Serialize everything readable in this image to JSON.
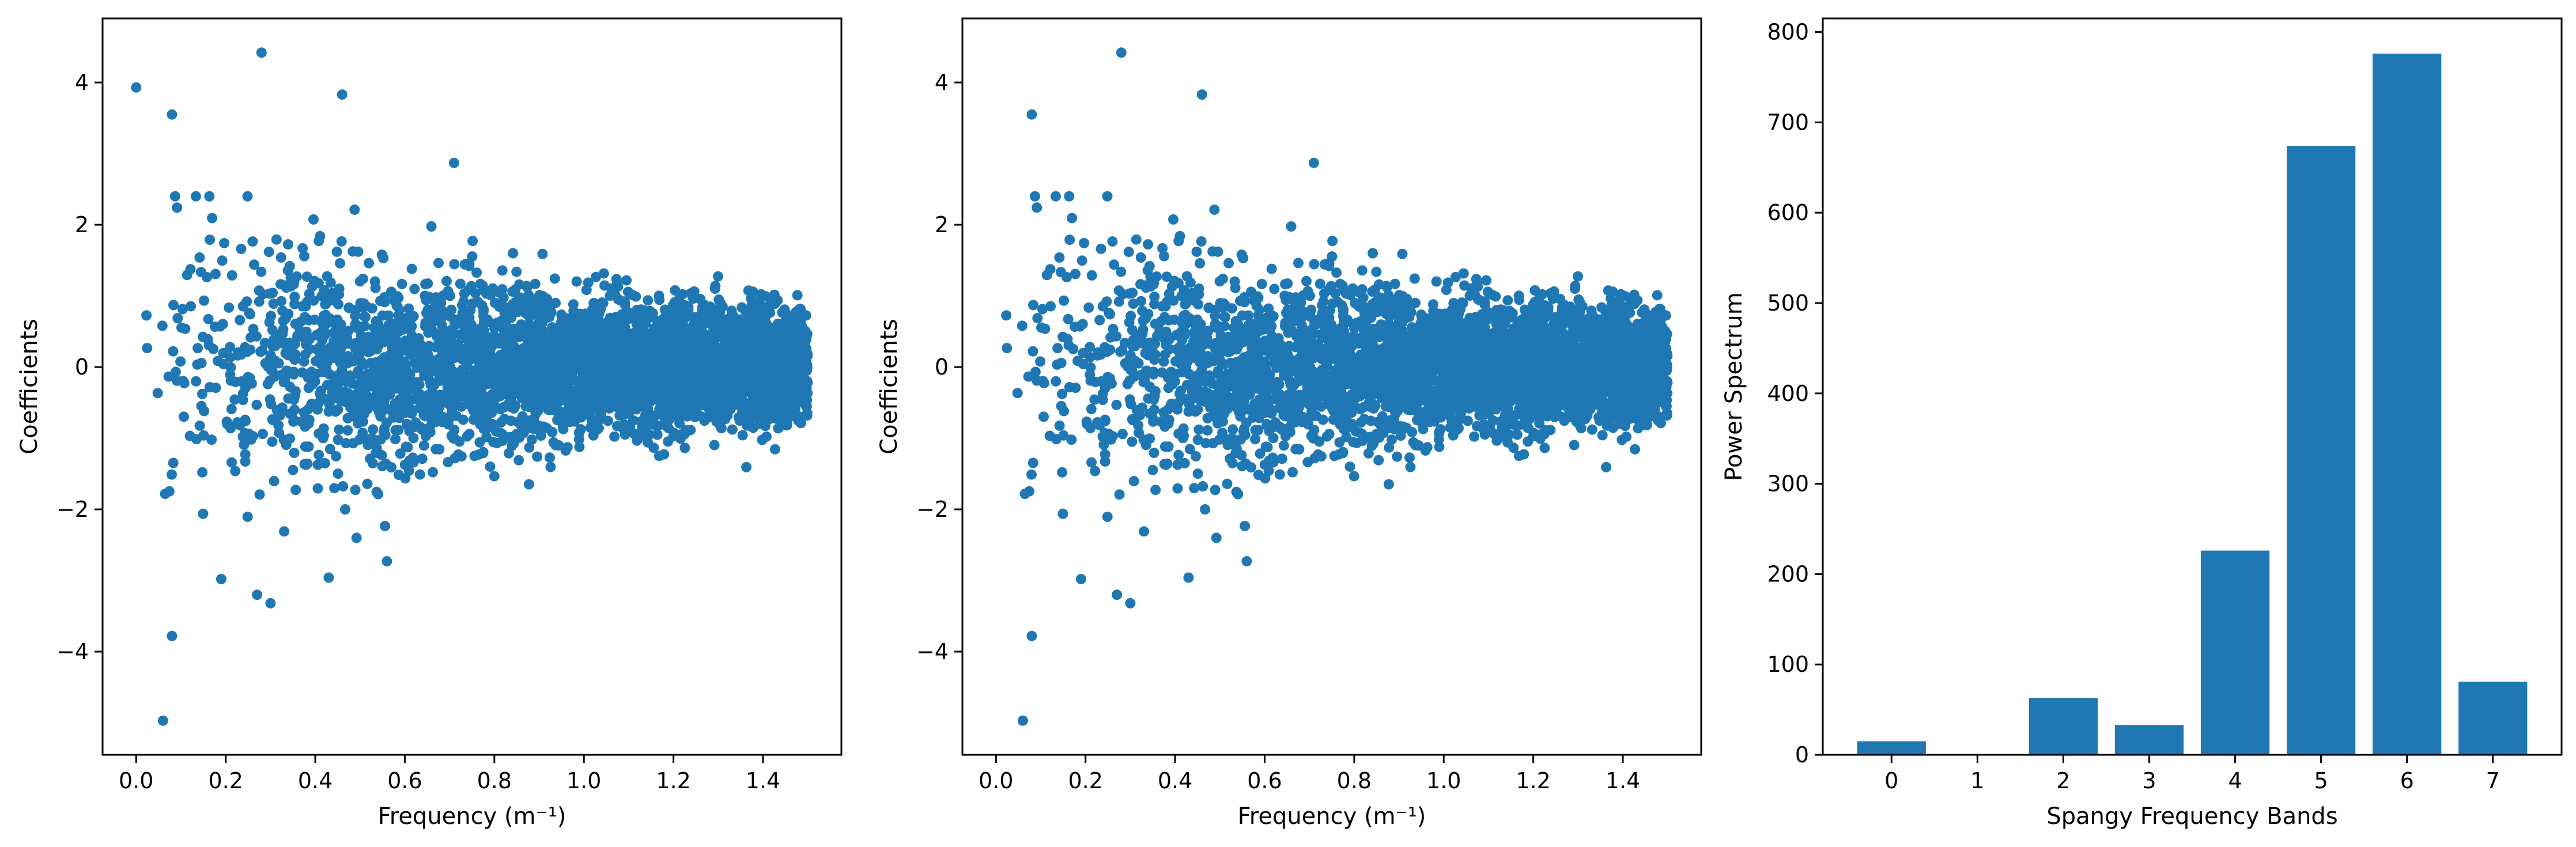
{
  "figure": {
    "background": "#ffffff",
    "mark_color": "#1f77b4"
  },
  "chart_data": [
    {
      "type": "scatter",
      "title": "",
      "xlabel": "Frequency (m⁻¹)",
      "ylabel": "Coefficients",
      "xlim": [
        -0.075,
        1.575
      ],
      "ylim": [
        -5.45,
        4.9
      ],
      "xticks": [
        0.0,
        0.2,
        0.4,
        0.6,
        0.8,
        1.0,
        1.2,
        1.4
      ],
      "xtick_labels": [
        "0.0",
        "0.2",
        "0.4",
        "0.6",
        "0.8",
        "1.0",
        "1.2",
        "1.4"
      ],
      "yticks": [
        -4,
        -2,
        0,
        2,
        4
      ],
      "ytick_labels": [
        "−4",
        "−2",
        "0",
        "2",
        "4"
      ],
      "color": "#1f77b4",
      "n_points": 4000,
      "x_range": [
        0.0,
        1.5
      ],
      "notable_points": [
        {
          "x": 0.0,
          "y": 3.93
        },
        {
          "x": 0.08,
          "y": 3.55
        },
        {
          "x": 0.28,
          "y": 4.42
        },
        {
          "x": 0.46,
          "y": 3.83
        },
        {
          "x": 0.06,
          "y": -4.97
        },
        {
          "x": 0.08,
          "y": -3.78
        },
        {
          "x": 0.3,
          "y": -3.32
        },
        {
          "x": 0.27,
          "y": -3.2
        },
        {
          "x": 0.19,
          "y": -2.98
        },
        {
          "x": 0.43,
          "y": -2.96
        },
        {
          "x": 0.71,
          "y": 2.87
        },
        {
          "x": 0.56,
          "y": -2.73
        }
      ]
    },
    {
      "type": "scatter",
      "title": "",
      "xlabel": "Frequency (m⁻¹)",
      "ylabel": "Coefficients",
      "xlim": [
        -0.075,
        1.575
      ],
      "ylim": [
        -5.45,
        4.9
      ],
      "xticks": [
        0.0,
        0.2,
        0.4,
        0.6,
        0.8,
        1.0,
        1.2,
        1.4
      ],
      "xtick_labels": [
        "0.0",
        "0.2",
        "0.4",
        "0.6",
        "0.8",
        "1.0",
        "1.2",
        "1.4"
      ],
      "yticks": [
        -4,
        -2,
        0,
        2,
        4
      ],
      "ytick_labels": [
        "−4",
        "−2",
        "0",
        "2",
        "4"
      ],
      "color": "#1f77b4",
      "n_points": 3999,
      "x_range": [
        0.0,
        1.5
      ],
      "notable_points": [
        {
          "x": 0.08,
          "y": 3.55
        },
        {
          "x": 0.28,
          "y": 4.42
        },
        {
          "x": 0.46,
          "y": 3.83
        },
        {
          "x": 0.06,
          "y": -4.97
        },
        {
          "x": 0.08,
          "y": -3.78
        },
        {
          "x": 0.3,
          "y": -3.32
        },
        {
          "x": 0.27,
          "y": -3.2
        },
        {
          "x": 0.19,
          "y": -2.98
        },
        {
          "x": 0.43,
          "y": -2.96
        },
        {
          "x": 0.71,
          "y": 2.87
        },
        {
          "x": 0.56,
          "y": -2.73
        }
      ]
    },
    {
      "type": "bar",
      "title": "",
      "xlabel": "Spangy Frequency Bands",
      "ylabel": "Power Spectrum",
      "categories": [
        "0",
        "1",
        "2",
        "3",
        "4",
        "5",
        "6",
        "7"
      ],
      "values": [
        15,
        0,
        63,
        33,
        226,
        674,
        776,
        81
      ],
      "xlim": [
        -0.8,
        7.8
      ],
      "ylim": [
        0,
        815
      ],
      "yticks": [
        0,
        100,
        200,
        300,
        400,
        500,
        600,
        700,
        800
      ],
      "ytick_labels": [
        "0",
        "100",
        "200",
        "300",
        "400",
        "500",
        "600",
        "700",
        "800"
      ],
      "bar_width": 0.8,
      "color": "#1f77b4"
    }
  ]
}
